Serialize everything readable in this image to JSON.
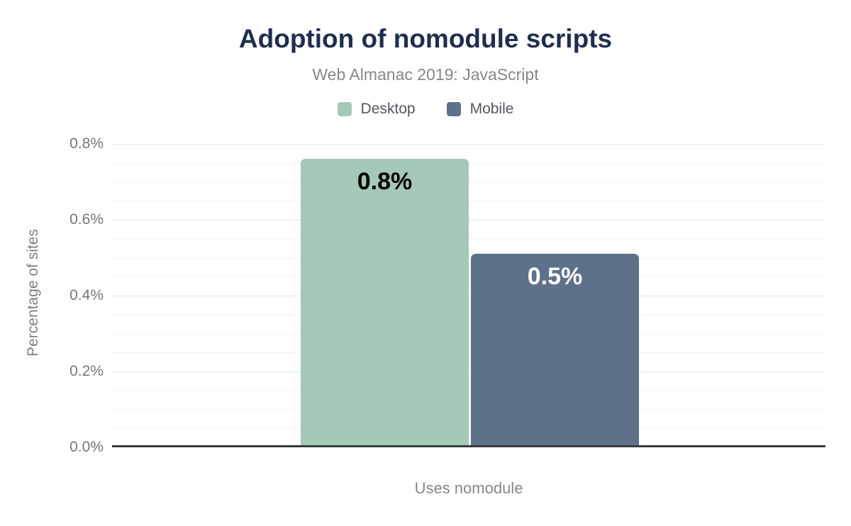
{
  "chart_data": {
    "type": "bar",
    "title": "Adoption of nomodule scripts",
    "subtitle": "Web Almanac 2019: JavaScript",
    "categories": [
      "Uses nomodule"
    ],
    "series": [
      {
        "name": "Desktop",
        "values": [
          0.76
        ],
        "value_labels": [
          "0.8%"
        ],
        "color": "#a4c9b6",
        "label_color": "#000000"
      },
      {
        "name": "Mobile",
        "values": [
          0.51
        ],
        "value_labels": [
          "0.5%"
        ],
        "color": "#5e718a",
        "label_color": "#ffffff"
      }
    ],
    "xlabel": "Uses nomodule",
    "ylabel": "Percentage of sites",
    "ylim": [
      0,
      0.86
    ],
    "yticks": [
      {
        "value": 0.0,
        "label": "0.0%"
      },
      {
        "value": 0.2,
        "label": "0.2%"
      },
      {
        "value": 0.4,
        "label": "0.4%"
      },
      {
        "value": 0.6,
        "label": "0.6%"
      },
      {
        "value": 0.8,
        "label": "0.8%"
      }
    ],
    "minor_tick_step": 0.05,
    "grid": true,
    "legend_position": "top",
    "colors": {
      "title": "#1e2e50",
      "subtitle": "#85878a",
      "axis_line": "#3a3b3d",
      "tick_label": "#74777c",
      "major_grid": "#e5e6e8",
      "minor_grid": "#f4f4f6"
    }
  }
}
